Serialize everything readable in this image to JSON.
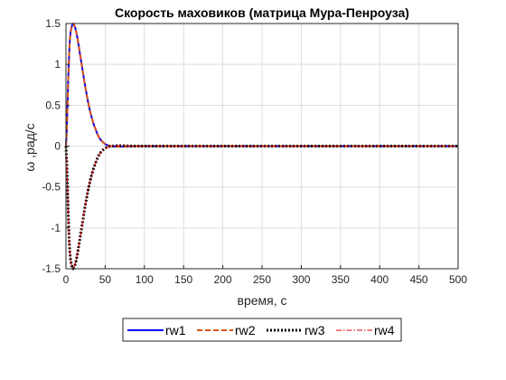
{
  "chart_data": {
    "type": "line",
    "title": "Скорость маховиков (матрица Мура-Пенроуза)",
    "xlabel": "время, с",
    "ylabel": "ω ,рад/с",
    "xlim": [
      0,
      500
    ],
    "ylim": [
      -1.5,
      1.5
    ],
    "xticks": [
      "0",
      "50",
      "100",
      "150",
      "200",
      "250",
      "300",
      "350",
      "400",
      "450",
      "500"
    ],
    "yticks": [
      "-1.5",
      "-1",
      "-0.5",
      "0",
      "0.5",
      "1",
      "1.5"
    ],
    "grid": true,
    "legend_position": "bottom-outside",
    "x": [
      0,
      1,
      2,
      3,
      4,
      5,
      6,
      7,
      8,
      9,
      10,
      11,
      12,
      13,
      14,
      15,
      16,
      17,
      18,
      20,
      22,
      24,
      26,
      28,
      30,
      32,
      34,
      36,
      38,
      40,
      42,
      44,
      46,
      48,
      50,
      52,
      54,
      56,
      58,
      60,
      65,
      70,
      75,
      80,
      90,
      100,
      150,
      200,
      250,
      300,
      350,
      400,
      450,
      500
    ],
    "series": [
      {
        "name": "rw1",
        "color": "#0000ff",
        "style": "solid",
        "values": [
          0,
          0.2,
          0.5,
          0.85,
          1.12,
          1.3,
          1.4,
          1.45,
          1.48,
          1.5,
          1.49,
          1.47,
          1.44,
          1.4,
          1.35,
          1.3,
          1.24,
          1.18,
          1.12,
          1.0,
          0.88,
          0.76,
          0.65,
          0.55,
          0.46,
          0.38,
          0.31,
          0.25,
          0.2,
          0.15,
          0.11,
          0.08,
          0.06,
          0.04,
          0.025,
          0.015,
          0.008,
          0.003,
          0.001,
          0,
          -0.005,
          -0.006,
          -0.004,
          -0.002,
          0,
          0,
          0,
          0,
          0,
          0,
          0,
          0,
          0,
          0
        ]
      },
      {
        "name": "rw2",
        "color": "#d95319",
        "style": "dashed",
        "values": [
          0,
          0.2,
          0.5,
          0.85,
          1.12,
          1.3,
          1.4,
          1.45,
          1.48,
          1.5,
          1.49,
          1.47,
          1.44,
          1.4,
          1.35,
          1.3,
          1.24,
          1.18,
          1.12,
          1.0,
          0.88,
          0.76,
          0.65,
          0.55,
          0.46,
          0.38,
          0.31,
          0.25,
          0.2,
          0.15,
          0.11,
          0.08,
          0.06,
          0.04,
          0.025,
          0.015,
          0.008,
          0.003,
          0.001,
          0,
          -0.005,
          -0.006,
          -0.004,
          -0.002,
          0,
          0,
          0,
          0,
          0,
          0,
          0,
          0,
          0,
          0
        ]
      },
      {
        "name": "rw3",
        "color": "#000000",
        "style": "dotted",
        "values": [
          0,
          -0.2,
          -0.5,
          -0.85,
          -1.12,
          -1.3,
          -1.4,
          -1.45,
          -1.48,
          -1.5,
          -1.49,
          -1.47,
          -1.44,
          -1.4,
          -1.35,
          -1.3,
          -1.24,
          -1.18,
          -1.12,
          -1.0,
          -0.88,
          -0.76,
          -0.65,
          -0.55,
          -0.46,
          -0.38,
          -0.31,
          -0.25,
          -0.2,
          -0.15,
          -0.11,
          -0.08,
          -0.06,
          -0.04,
          -0.025,
          -0.015,
          -0.008,
          -0.003,
          -0.001,
          0,
          0.005,
          0.006,
          0.004,
          0.002,
          0,
          0,
          0,
          0,
          0,
          0,
          0,
          0,
          0,
          0
        ]
      },
      {
        "name": "rw4",
        "color": "#e00000",
        "style": "dashdot",
        "values": [
          0,
          -0.2,
          -0.5,
          -0.85,
          -1.12,
          -1.3,
          -1.4,
          -1.45,
          -1.48,
          -1.5,
          -1.49,
          -1.47,
          -1.44,
          -1.4,
          -1.35,
          -1.3,
          -1.24,
          -1.18,
          -1.12,
          -1.0,
          -0.88,
          -0.76,
          -0.65,
          -0.55,
          -0.46,
          -0.38,
          -0.31,
          -0.25,
          -0.2,
          -0.15,
          -0.11,
          -0.08,
          -0.06,
          -0.04,
          -0.025,
          -0.015,
          -0.008,
          -0.003,
          -0.001,
          0,
          0.005,
          0.006,
          0.004,
          0.002,
          0,
          0,
          0,
          0,
          0,
          0,
          0,
          0,
          0,
          0
        ]
      }
    ]
  }
}
